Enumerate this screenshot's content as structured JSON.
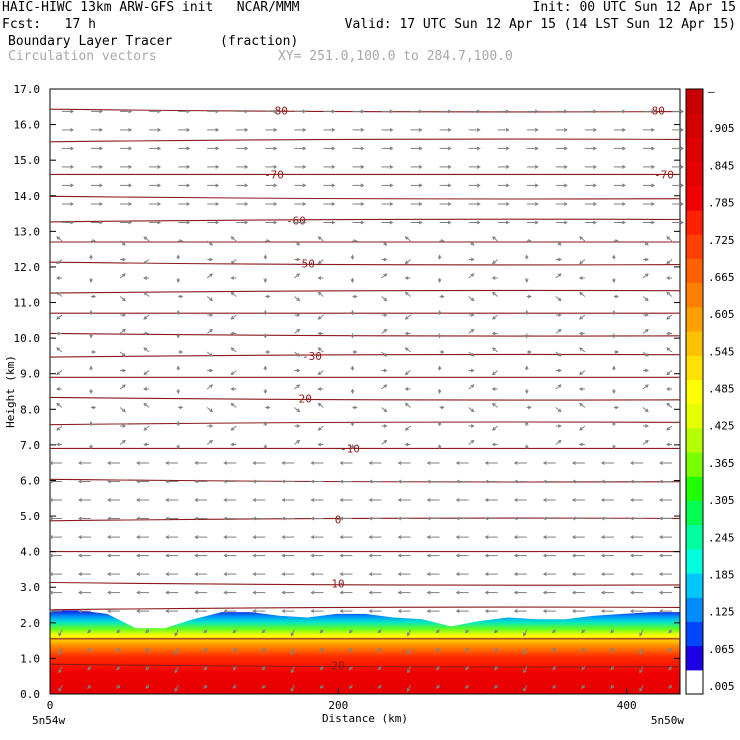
{
  "header": {
    "title_left": "HAIC-HIWC 13km ARW-GFS init   NCAR/MMM",
    "init": "Init: 00 UTC Sun 12 Apr 15",
    "fcst": "Fcst:   17 h",
    "valid": "Valid: 17 UTC Sun 12 Apr 15 (14 LST Sun 12 Apr 15)",
    "field": "Boundary Layer Tracer",
    "units": "(fraction)",
    "vectors": "Circulation vectors",
    "xy": "XY= 251.0,100.0 to 284.7,100.0"
  },
  "colors": {
    "contour": "#8b1a1a",
    "vector": "#808080",
    "colorbar": [
      "#ffffff",
      "#1e00e6",
      "#0046ff",
      "#008cff",
      "#00c8ff",
      "#00ffe0",
      "#00ffa0",
      "#00ff50",
      "#20ff00",
      "#78ff00",
      "#b4ff00",
      "#e6ff00",
      "#ffff00",
      "#ffe000",
      "#ffc000",
      "#ffa000",
      "#ff8000",
      "#ff6000",
      "#ff4000",
      "#ff2000",
      "#f00000",
      "#e60000",
      "#dc0000",
      "#d20000",
      "#c80000"
    ]
  },
  "chart_data": {
    "type": "heatmap",
    "title": "Boundary Layer Tracer",
    "xlabel": "Distance (km)",
    "ylabel": "Height (km)",
    "xlim": [
      0,
      437
    ],
    "ylim": [
      0,
      17
    ],
    "x_ticks": [
      0,
      200,
      400
    ],
    "y_ticks": [
      "0.0",
      "1.0",
      "2.0",
      "3.0",
      "4.0",
      "5.0",
      "6.0",
      "7.0",
      "8.0",
      "9.0",
      "10.0",
      "11.0",
      "12.0",
      "13.0",
      "14.0",
      "15.0",
      "16.0",
      "17.0"
    ],
    "x_endpoint_labels": [
      "5n54w",
      "5n50w"
    ],
    "colorbar_labels": [
      ".005",
      ".065",
      ".125",
      ".185",
      ".245",
      ".305",
      ".365",
      ".425",
      ".485",
      ".545",
      ".605",
      ".665",
      ".725",
      ".785",
      ".845",
      ".905",
      "–"
    ],
    "boundary_layer_top_km": [
      2.35,
      2.35,
      2.25,
      1.85,
      1.85,
      2.1,
      2.3,
      2.3,
      2.2,
      2.15,
      2.25,
      2.25,
      2.15,
      2.1,
      1.9,
      2.05,
      2.15,
      2.1,
      2.1,
      2.2,
      2.25,
      2.3,
      2.3
    ],
    "contours": [
      {
        "label": "-80",
        "height_km": 16.4
      },
      {
        "label": "-70",
        "height_km": 14.6
      },
      {
        "label": "-60",
        "height_km": 13.3
      },
      {
        "label": "-50",
        "height_km": 12.1
      },
      {
        "label": "-30",
        "height_km": 9.5
      },
      {
        "label": "-20",
        "height_km": 8.3
      },
      {
        "label": "-10",
        "height_km": 6.9
      },
      {
        "label": "0",
        "height_km": 4.9
      },
      {
        "label": "10",
        "height_km": 3.1
      },
      {
        "label": "20",
        "height_km": 0.8
      }
    ],
    "contour_levels_km": [
      0.8,
      1.55,
      2.4,
      3.1,
      4.0,
      4.9,
      6.0,
      6.9,
      7.6,
      8.3,
      8.9,
      9.5,
      10.1,
      10.7,
      11.3,
      12.1,
      12.7,
      13.3,
      13.95,
      14.6,
      15.55,
      16.4
    ]
  }
}
